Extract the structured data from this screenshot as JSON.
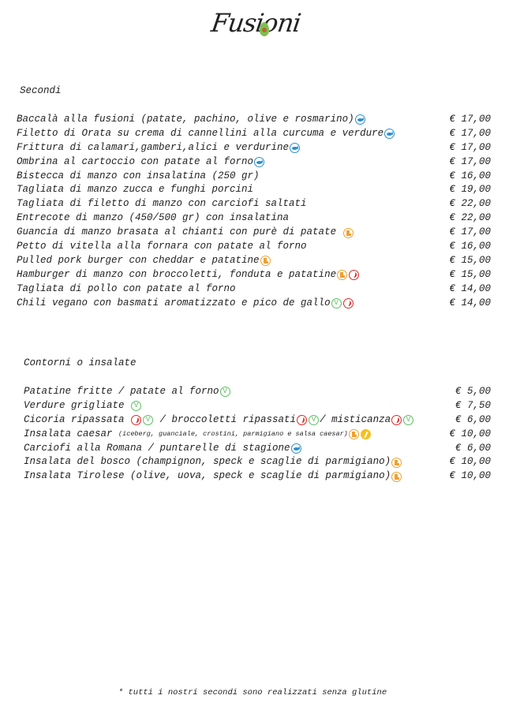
{
  "brand": {
    "logo_text": "Fusioni"
  },
  "legend_colors": {
    "fish": "#2a8fd0",
    "dairy": "#f0a030",
    "chili": "#e02828",
    "vegan": "#5cc060",
    "gluten": "#f5c020"
  },
  "secondi": {
    "title": "Secondi",
    "items": [
      {
        "name": "Baccalà alla fusioni (patate, pachino, olive e rosmarino)",
        "icons": [
          "fish-icon"
        ],
        "price": "€ 17,00"
      },
      {
        "name": "Filetto di Orata su crema di cannellini alla curcuma e verdure",
        "icons": [
          "fish-icon"
        ],
        "price": "€ 17,00"
      },
      {
        "name": "Frittura di calamari,gamberi,alici e verdurine",
        "icons": [
          "fish-icon"
        ],
        "price": "€ 17,00"
      },
      {
        "name": "Ombrina al cartoccio con patate al forno",
        "icons": [
          "fish-icon"
        ],
        "price": "€ 17,00"
      },
      {
        "name": "Bistecca di manzo con insalatina (250 gr)",
        "icons": [],
        "price": "€ 16,00"
      },
      {
        "name": "Tagliata di manzo zucca e funghi porcini",
        "icons": [],
        "price": "€ 19,00"
      },
      {
        "name": "Tagliata di filetto di manzo con carciofi saltati",
        "icons": [],
        "price": "€ 22,00"
      },
      {
        "name": "Entrecote di manzo (450/500 gr) con insalatina",
        "icons": [],
        "price": "€ 22,00"
      },
      {
        "name": "Guancia di manzo brasata al chianti con purè di patate ",
        "icons": [
          "dairy-icon"
        ],
        "price": "€ 17,00"
      },
      {
        "name": "Petto di vitella alla fornara con patate al forno",
        "icons": [],
        "price": "€ 16,00"
      },
      {
        "name": "Pulled pork burger con cheddar e patatine",
        "icons": [
          "dairy-icon"
        ],
        "price": "€ 15,00"
      },
      {
        "name": "Hamburger di manzo con broccoletti, fonduta e patatine",
        "icons": [
          "dairy-icon",
          "chili-icon"
        ],
        "price": "€ 15,00"
      },
      {
        "name": "Tagliata di pollo con patate al forno",
        "icons": [],
        "price": "€ 14,00"
      },
      {
        "name": "Chili vegano con basmati aromatizzato e pico de gallo",
        "icons": [
          "vegan-icon",
          "chili-icon"
        ],
        "price": "€ 14,00"
      }
    ]
  },
  "contorni": {
    "title": "Contorni o insalate",
    "items": [
      {
        "parts": [
          {
            "text": "Patatine fritte / patate al forno"
          },
          {
            "icon": "vegan-icon"
          }
        ],
        "price": "€ 5,00"
      },
      {
        "parts": [
          {
            "text": "Verdure grigliate "
          },
          {
            "icon": "vegan-icon"
          }
        ],
        "price": "€ 7,50"
      },
      {
        "parts": [
          {
            "text": "Cicoria ripassata "
          },
          {
            "icon": "chili-icon"
          },
          {
            "icon": "vegan-icon"
          },
          {
            "text": " / broccoletti ripassati"
          },
          {
            "icon": "chili-icon"
          },
          {
            "icon": "vegan-icon"
          },
          {
            "text": "/ misticanza"
          },
          {
            "icon": "chili-icon"
          },
          {
            "icon": "vegan-icon"
          }
        ],
        "price": "€ 6,00"
      },
      {
        "parts": [
          {
            "text": "Insalata caesar "
          },
          {
            "small": "(iceberg, guanciale, crostini, parmigiano e salsa caesar)"
          },
          {
            "icon": "dairy-icon"
          },
          {
            "icon": "gluten-icon"
          }
        ],
        "price": "€ 10,00"
      },
      {
        "parts": [
          {
            "text": "Carciofi alla Romana / puntarelle di stagione"
          },
          {
            "icon": "fish-icon"
          }
        ],
        "price": "€ 6,00"
      },
      {
        "parts": [
          {
            "text": "Insalata del bosco (champignon, speck e scaglie di parmigiano)"
          },
          {
            "icon": "dairy-icon"
          }
        ],
        "price": "€ 10,00"
      },
      {
        "parts": [
          {
            "text": "Insalata Tirolese (olive, uova, speck e scaglie di parmigiano)"
          },
          {
            "icon": "dairy-icon"
          }
        ],
        "price": "€ 10,00"
      }
    ]
  },
  "footnote": "* tutti i nostri secondi sono realizzati senza glutine"
}
